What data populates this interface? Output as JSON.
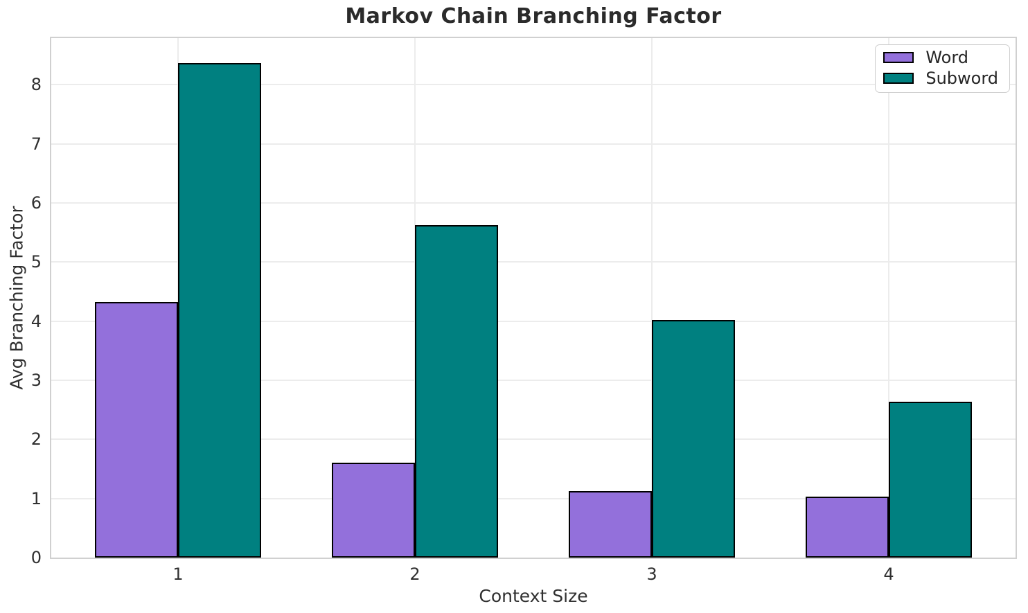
{
  "title": "Markov Chain Branching Factor",
  "chart_data": {
    "type": "bar",
    "title": "Markov Chain Branching Factor",
    "xlabel": "Context Size",
    "ylabel": "Avg Branching Factor",
    "categories": [
      "1",
      "2",
      "3",
      "4"
    ],
    "series": [
      {
        "name": "Word",
        "color": "#9370db",
        "values": [
          4.32,
          1.61,
          1.13,
          1.03
        ]
      },
      {
        "name": "Subword",
        "color": "#008080",
        "values": [
          8.37,
          5.62,
          4.02,
          2.64
        ]
      }
    ],
    "yticks": [
      0,
      1,
      2,
      3,
      4,
      5,
      6,
      7,
      8
    ],
    "ylim": [
      0,
      8.79
    ],
    "xlim": [
      -0.535,
      3.535
    ],
    "bar_width": 0.35,
    "grid": true,
    "legend_position": "upper right",
    "bar_edge_color": "#000000",
    "grid_color": "#ececec",
    "text_color": "#262626"
  }
}
